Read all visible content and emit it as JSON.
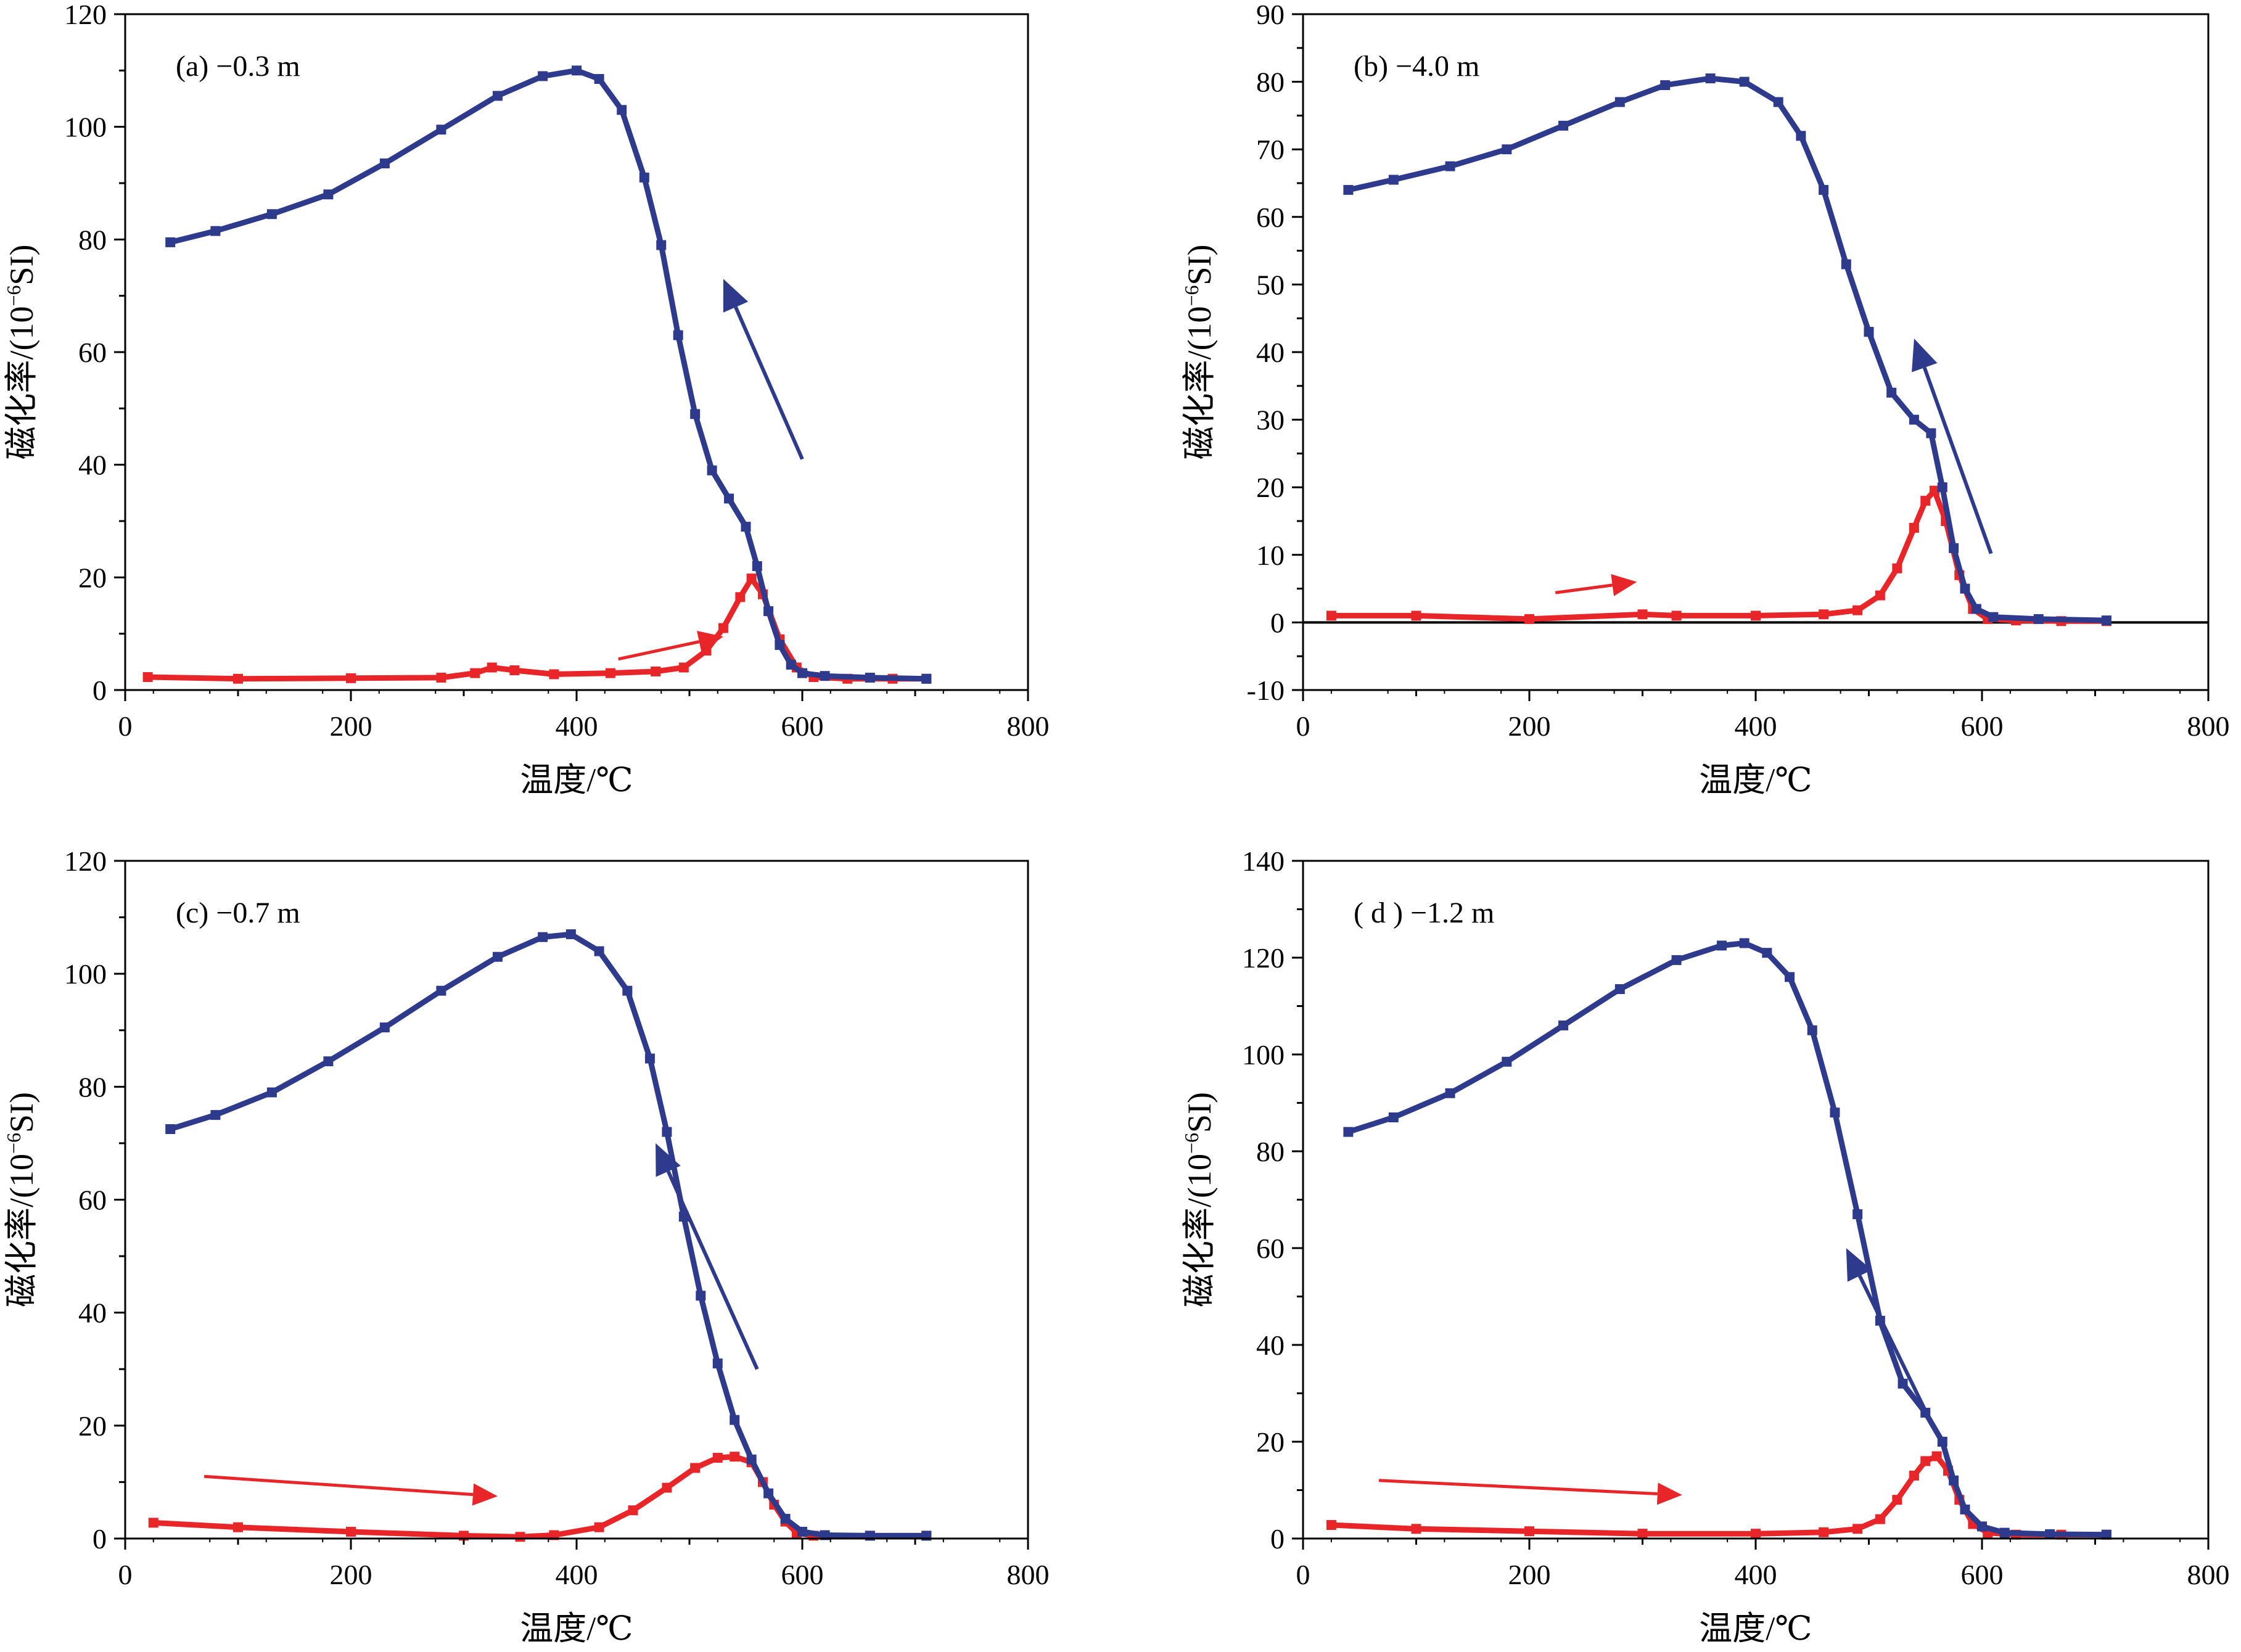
{
  "figure": {
    "x_axis_title": "温度/℃",
    "y_axis_title_main": "磁化率/(10",
    "y_axis_title_exp": "−6",
    "y_axis_title_tail": "SI)"
  },
  "colors": {
    "heating": "#e8262a",
    "cooling": "#2e3a8c",
    "frame": "#000000"
  },
  "chart_data": [
    {
      "type": "line",
      "panel_label": "(a)  −0.3 m",
      "xlabel": "温度/℃",
      "ylabel": "磁化率/(10−6SI)",
      "xlim": [
        0,
        800
      ],
      "ylim": [
        0,
        120
      ],
      "x_ticks": [
        0,
        200,
        400,
        600,
        800
      ],
      "y_ticks": [
        0,
        20,
        40,
        60,
        80,
        100,
        120
      ],
      "zero_line": false,
      "series": [
        {
          "role": "heating",
          "color": "#e8262a",
          "x": [
            20,
            100,
            200,
            280,
            310,
            325,
            345,
            380,
            430,
            470,
            495,
            515,
            530,
            545,
            555,
            565,
            580,
            595,
            610,
            640,
            680,
            710
          ],
          "y": [
            2.3,
            2.0,
            2.1,
            2.2,
            3.0,
            4.0,
            3.5,
            2.8,
            3.0,
            3.3,
            4.0,
            7.0,
            11.0,
            16.5,
            19.8,
            17.0,
            9.0,
            4.0,
            2.3,
            2.0,
            2.0,
            2.0
          ]
        },
        {
          "role": "cooling",
          "color": "#2e3a8c",
          "x": [
            40,
            80,
            130,
            180,
            230,
            280,
            330,
            370,
            400,
            420,
            440,
            460,
            475,
            490,
            505,
            520,
            535,
            550,
            560,
            570,
            580,
            590,
            600,
            620,
            660,
            710
          ],
          "y": [
            79.5,
            81.5,
            84.5,
            88.0,
            93.5,
            99.5,
            105.5,
            109.0,
            110.0,
            108.5,
            103.0,
            91.0,
            79.0,
            63.0,
            49.0,
            39.0,
            34.0,
            29.0,
            22.0,
            14.0,
            8.0,
            4.5,
            3.0,
            2.5,
            2.2,
            2.0
          ]
        }
      ]
    },
    {
      "type": "line",
      "panel_label": "(b)  −4.0 m",
      "xlabel": "温度/℃",
      "ylabel": "磁化率/(10−6SI)",
      "xlim": [
        0,
        800
      ],
      "ylim": [
        -10,
        90
      ],
      "x_ticks": [
        0,
        200,
        400,
        600,
        800
      ],
      "y_ticks": [
        -10,
        0,
        10,
        20,
        30,
        40,
        50,
        60,
        70,
        80,
        90
      ],
      "zero_line": true,
      "series": [
        {
          "role": "heating",
          "color": "#e8262a",
          "x": [
            25,
            100,
            200,
            300,
            330,
            400,
            460,
            490,
            510,
            525,
            540,
            550,
            558,
            568,
            580,
            592,
            605,
            630,
            670,
            710
          ],
          "y": [
            1.0,
            1.0,
            0.5,
            1.2,
            1.0,
            1.0,
            1.2,
            1.8,
            4.0,
            8.0,
            14.0,
            18.0,
            19.5,
            15.0,
            7.0,
            2.0,
            0.5,
            0.3,
            0.2,
            0.2
          ]
        },
        {
          "role": "cooling",
          "color": "#2e3a8c",
          "x": [
            40,
            80,
            130,
            180,
            230,
            280,
            320,
            360,
            390,
            420,
            440,
            460,
            480,
            500,
            520,
            540,
            555,
            565,
            575,
            585,
            595,
            610,
            650,
            710
          ],
          "y": [
            64.0,
            65.5,
            67.5,
            70.0,
            73.5,
            77.0,
            79.5,
            80.5,
            80.0,
            77.0,
            72.0,
            64.0,
            53.0,
            43.0,
            34.0,
            30.0,
            28.0,
            20.0,
            11.0,
            5.0,
            2.0,
            0.8,
            0.5,
            0.3
          ]
        }
      ]
    },
    {
      "type": "line",
      "panel_label": "(c)  −0.7 m",
      "xlabel": "温度/℃",
      "ylabel": "磁化率/(10−6SI)",
      "xlim": [
        0,
        800
      ],
      "ylim": [
        0,
        120
      ],
      "x_ticks": [
        0,
        200,
        400,
        600,
        800
      ],
      "y_ticks": [
        0,
        20,
        40,
        60,
        80,
        100,
        120
      ],
      "zero_line": false,
      "series": [
        {
          "role": "heating",
          "color": "#e8262a",
          "x": [
            25,
            100,
            200,
            300,
            350,
            380,
            420,
            450,
            480,
            505,
            525,
            540,
            555,
            565,
            575,
            585,
            595,
            610,
            660,
            710
          ],
          "y": [
            2.8,
            2.0,
            1.2,
            0.5,
            0.3,
            0.6,
            2.0,
            5.0,
            9.0,
            12.5,
            14.3,
            14.5,
            13.5,
            10.0,
            6.0,
            3.0,
            1.0,
            0.5,
            0.5,
            0.5
          ]
        },
        {
          "role": "cooling",
          "color": "#2e3a8c",
          "x": [
            40,
            80,
            130,
            180,
            230,
            280,
            330,
            370,
            395,
            420,
            445,
            465,
            480,
            495,
            510,
            525,
            540,
            555,
            570,
            585,
            600,
            620,
            660,
            710
          ],
          "y": [
            72.5,
            75.0,
            79.0,
            84.5,
            90.5,
            97.0,
            103.0,
            106.5,
            107.0,
            104.0,
            97.0,
            85.0,
            72.0,
            57.0,
            43.0,
            31.0,
            21.0,
            14.0,
            8.0,
            3.5,
            1.2,
            0.6,
            0.5,
            0.5
          ]
        }
      ]
    },
    {
      "type": "line",
      "panel_label": "( d )  −1.2 m",
      "xlabel": "温度/℃",
      "ylabel": "磁化率/(10−6SI)",
      "xlim": [
        0,
        800
      ],
      "ylim": [
        0,
        140
      ],
      "x_ticks": [
        0,
        200,
        400,
        600,
        800
      ],
      "y_ticks": [
        0,
        20,
        40,
        60,
        80,
        100,
        120,
        140
      ],
      "zero_line": false,
      "series": [
        {
          "role": "heating",
          "color": "#e8262a",
          "x": [
            25,
            100,
            200,
            300,
            400,
            460,
            490,
            510,
            525,
            540,
            550,
            560,
            570,
            580,
            592,
            605,
            630,
            670,
            710
          ],
          "y": [
            2.8,
            2.0,
            1.5,
            1.0,
            1.0,
            1.3,
            2.0,
            4.0,
            8.0,
            13.0,
            16.0,
            17.0,
            14.0,
            8.0,
            3.0,
            1.2,
            0.8,
            0.8,
            0.8
          ]
        },
        {
          "role": "cooling",
          "color": "#2e3a8c",
          "x": [
            40,
            80,
            130,
            180,
            230,
            280,
            330,
            370,
            390,
            410,
            430,
            450,
            470,
            490,
            510,
            530,
            550,
            565,
            575,
            585,
            600,
            620,
            660,
            710
          ],
          "y": [
            84.0,
            87.0,
            92.0,
            98.5,
            106.0,
            113.5,
            119.5,
            122.5,
            123.0,
            121.0,
            116.0,
            105.0,
            88.0,
            67.0,
            45.0,
            32.0,
            26.0,
            20.0,
            12.0,
            6.0,
            2.5,
            1.2,
            0.9,
            0.8
          ]
        }
      ]
    }
  ]
}
